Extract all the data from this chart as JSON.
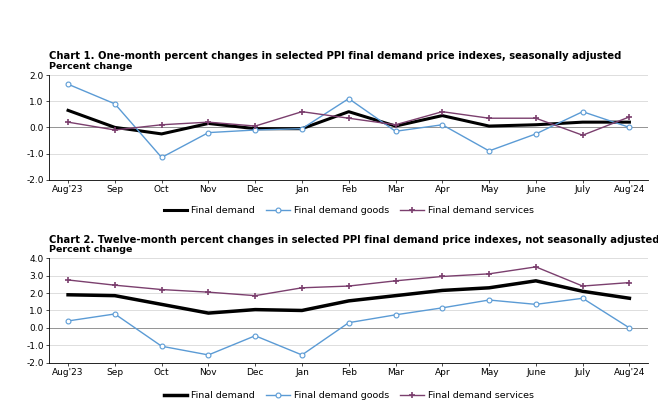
{
  "months": [
    "Aug'23",
    "Sep",
    "Oct",
    "Nov",
    "Dec",
    "Jan",
    "Feb",
    "Mar",
    "Apr",
    "May",
    "June",
    "July",
    "Aug'24"
  ],
  "chart1": {
    "title": "Chart 1. One-month percent changes in selected PPI final demand price indexes, seasonally adjusted",
    "ylabel": "Percent change",
    "ylim": [
      -2.0,
      2.0
    ],
    "yticks": [
      -2.0,
      -1.0,
      0.0,
      1.0,
      2.0
    ],
    "final_demand": [
      0.65,
      0.0,
      -0.25,
      0.15,
      -0.05,
      -0.05,
      0.6,
      0.05,
      0.45,
      0.05,
      0.1,
      0.2,
      0.2
    ],
    "final_demand_goods": [
      1.65,
      0.9,
      -1.15,
      -0.2,
      -0.1,
      -0.05,
      1.1,
      -0.15,
      0.1,
      -0.9,
      -0.25,
      0.6,
      0.0
    ],
    "final_demand_services": [
      0.2,
      -0.1,
      0.1,
      0.2,
      0.05,
      0.6,
      0.35,
      0.1,
      0.6,
      0.35,
      0.35,
      -0.3,
      0.4
    ]
  },
  "chart2": {
    "title": "Chart 2. Twelve-month percent changes in selected PPI final demand price indexes, not seasonally adjusted",
    "ylabel": "Percent change",
    "ylim": [
      -2.0,
      4.0
    ],
    "yticks": [
      -2.0,
      -1.0,
      0.0,
      1.0,
      2.0,
      3.0,
      4.0
    ],
    "final_demand": [
      1.9,
      1.85,
      1.35,
      0.85,
      1.05,
      1.0,
      1.55,
      1.85,
      2.15,
      2.3,
      2.7,
      2.1,
      1.7
    ],
    "final_demand_goods": [
      0.4,
      0.8,
      -1.05,
      -1.55,
      -0.45,
      -1.55,
      0.3,
      0.75,
      1.15,
      1.6,
      1.35,
      1.7,
      0.0
    ],
    "final_demand_services": [
      2.75,
      2.45,
      2.2,
      2.05,
      1.85,
      2.3,
      2.4,
      2.7,
      2.95,
      3.1,
      3.5,
      2.4,
      2.6
    ]
  },
  "colors": {
    "final_demand": "#000000",
    "final_demand_goods": "#5b9bd5",
    "final_demand_services": "#7b3f6e"
  },
  "legend_labels": [
    "Final demand",
    "Final demand goods",
    "Final demand services"
  ],
  "background": "#ffffff"
}
